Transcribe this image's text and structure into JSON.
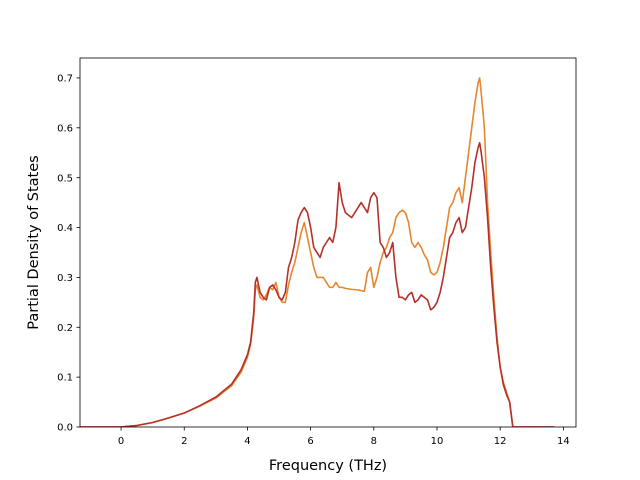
{
  "chart_data": {
    "type": "line",
    "title": "",
    "xlabel": "Frequency (THz)",
    "ylabel": "Partial Density of States",
    "xlim": [
      -1.3,
      14.4
    ],
    "ylim": [
      0.0,
      0.74
    ],
    "xticks": [
      0,
      2,
      4,
      6,
      8,
      10,
      12,
      14
    ],
    "xtick_labels": [
      "0",
      "2",
      "4",
      "6",
      "8",
      "10",
      "12",
      "14"
    ],
    "yticks": [
      0.0,
      0.1,
      0.2,
      0.3,
      0.4,
      0.5,
      0.6,
      0.7
    ],
    "ytick_labels": [
      "0.0",
      "0.1",
      "0.2",
      "0.3",
      "0.4",
      "0.5",
      "0.6",
      "0.7"
    ],
    "grid": false,
    "legend": "none",
    "series": [
      {
        "color": "#e6862e",
        "x": [
          -1.3,
          0.0,
          0.5,
          1.0,
          1.5,
          2.0,
          2.5,
          3.0,
          3.5,
          3.8,
          4.0,
          4.1,
          4.2,
          4.25,
          4.3,
          4.4,
          4.5,
          4.6,
          4.7,
          4.8,
          4.9,
          5.0,
          5.1,
          5.2,
          5.3,
          5.4,
          5.5,
          5.6,
          5.7,
          5.8,
          5.9,
          6.0,
          6.1,
          6.2,
          6.3,
          6.4,
          6.5,
          6.6,
          6.7,
          6.8,
          6.9,
          7.0,
          7.1,
          7.3,
          7.5,
          7.7,
          7.8,
          7.9,
          8.0,
          8.1,
          8.2,
          8.3,
          8.4,
          8.5,
          8.6,
          8.7,
          8.8,
          8.9,
          9.0,
          9.1,
          9.2,
          9.3,
          9.4,
          9.5,
          9.6,
          9.7,
          9.8,
          9.9,
          10.0,
          10.1,
          10.2,
          10.3,
          10.4,
          10.5,
          10.6,
          10.7,
          10.8,
          10.9,
          11.0,
          11.1,
          11.2,
          11.3,
          11.35,
          11.4,
          11.5,
          11.6,
          11.7,
          11.8,
          11.9,
          12.0,
          12.1,
          12.2,
          12.3,
          12.4,
          12.5,
          13.0,
          13.7
        ],
        "y": [
          0.0,
          0.0,
          0.003,
          0.009,
          0.018,
          0.028,
          0.042,
          0.058,
          0.083,
          0.11,
          0.14,
          0.165,
          0.22,
          0.275,
          0.285,
          0.26,
          0.255,
          0.265,
          0.28,
          0.275,
          0.29,
          0.26,
          0.25,
          0.25,
          0.285,
          0.31,
          0.33,
          0.36,
          0.39,
          0.41,
          0.38,
          0.35,
          0.32,
          0.3,
          0.3,
          0.3,
          0.29,
          0.28,
          0.28,
          0.29,
          0.28,
          0.28,
          0.278,
          0.276,
          0.275,
          0.272,
          0.31,
          0.32,
          0.28,
          0.3,
          0.33,
          0.35,
          0.36,
          0.38,
          0.39,
          0.42,
          0.43,
          0.435,
          0.43,
          0.41,
          0.37,
          0.36,
          0.37,
          0.36,
          0.345,
          0.335,
          0.31,
          0.305,
          0.31,
          0.33,
          0.36,
          0.4,
          0.44,
          0.45,
          0.47,
          0.48,
          0.45,
          0.5,
          0.55,
          0.6,
          0.65,
          0.69,
          0.7,
          0.67,
          0.6,
          0.45,
          0.35,
          0.26,
          0.18,
          0.12,
          0.09,
          0.07,
          0.05,
          0.0,
          0.0,
          0.0,
          0.0
        ]
      },
      {
        "color": "#b5302a",
        "x": [
          -1.3,
          0.0,
          0.5,
          1.0,
          1.5,
          2.0,
          2.5,
          3.0,
          3.5,
          3.8,
          4.0,
          4.1,
          4.2,
          4.25,
          4.3,
          4.4,
          4.5,
          4.6,
          4.7,
          4.8,
          4.9,
          5.0,
          5.1,
          5.2,
          5.3,
          5.4,
          5.5,
          5.6,
          5.7,
          5.8,
          5.9,
          6.0,
          6.1,
          6.2,
          6.3,
          6.4,
          6.5,
          6.6,
          6.7,
          6.8,
          6.9,
          7.0,
          7.1,
          7.3,
          7.5,
          7.6,
          7.7,
          7.8,
          7.9,
          8.0,
          8.1,
          8.2,
          8.3,
          8.4,
          8.5,
          8.6,
          8.7,
          8.8,
          8.9,
          9.0,
          9.1,
          9.2,
          9.3,
          9.4,
          9.5,
          9.6,
          9.7,
          9.8,
          9.9,
          10.0,
          10.1,
          10.2,
          10.3,
          10.4,
          10.5,
          10.6,
          10.7,
          10.8,
          10.9,
          11.0,
          11.1,
          11.2,
          11.3,
          11.35,
          11.4,
          11.5,
          11.6,
          11.7,
          11.8,
          11.9,
          12.0,
          12.1,
          12.2,
          12.3,
          12.4,
          12.5,
          13.0,
          13.7
        ],
        "y": [
          0.0,
          0.0,
          0.003,
          0.009,
          0.018,
          0.028,
          0.043,
          0.06,
          0.086,
          0.115,
          0.145,
          0.17,
          0.23,
          0.29,
          0.3,
          0.27,
          0.26,
          0.255,
          0.28,
          0.285,
          0.275,
          0.26,
          0.255,
          0.27,
          0.32,
          0.34,
          0.37,
          0.415,
          0.43,
          0.44,
          0.43,
          0.4,
          0.36,
          0.35,
          0.34,
          0.36,
          0.37,
          0.38,
          0.37,
          0.4,
          0.49,
          0.45,
          0.43,
          0.42,
          0.44,
          0.45,
          0.44,
          0.43,
          0.46,
          0.47,
          0.46,
          0.37,
          0.36,
          0.34,
          0.35,
          0.37,
          0.3,
          0.26,
          0.26,
          0.255,
          0.265,
          0.27,
          0.25,
          0.255,
          0.265,
          0.26,
          0.255,
          0.235,
          0.24,
          0.25,
          0.27,
          0.3,
          0.34,
          0.38,
          0.39,
          0.41,
          0.42,
          0.39,
          0.4,
          0.44,
          0.48,
          0.53,
          0.56,
          0.57,
          0.55,
          0.5,
          0.42,
          0.32,
          0.24,
          0.17,
          0.12,
          0.085,
          0.065,
          0.05,
          0.0,
          0.0,
          0.0,
          0.0
        ]
      }
    ]
  }
}
